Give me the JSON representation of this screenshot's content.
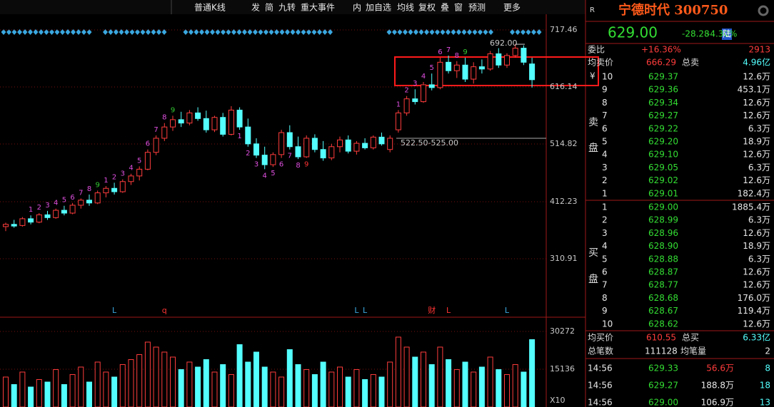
{
  "toolbar": [
    "普通K线",
    "发",
    "简",
    "九转",
    "重大事件",
    "内",
    "加自选",
    "均线",
    "复权",
    "叠",
    "窗",
    "预测",
    "更多"
  ],
  "chart": {
    "type": "candlestick",
    "ylim": [
      207.1,
      732.6
    ],
    "yticks": [
      717.46,
      616.14,
      514.82,
      412.23,
      310.91
    ],
    "candles": [
      [
        368,
        375,
        360,
        372
      ],
      [
        372,
        380,
        366,
        369
      ],
      [
        370,
        385,
        368,
        382
      ],
      [
        382,
        388,
        372,
        376
      ],
      [
        376,
        392,
        374,
        389
      ],
      [
        389,
        396,
        380,
        384
      ],
      [
        384,
        400,
        382,
        397
      ],
      [
        397,
        405,
        388,
        392
      ],
      [
        392,
        410,
        390,
        406
      ],
      [
        406,
        418,
        400,
        415
      ],
      [
        415,
        425,
        405,
        410
      ],
      [
        410,
        432,
        408,
        428
      ],
      [
        428,
        440,
        420,
        436
      ],
      [
        436,
        446,
        425,
        430
      ],
      [
        430,
        452,
        428,
        448
      ],
      [
        448,
        462,
        442,
        458
      ],
      [
        458,
        475,
        450,
        470
      ],
      [
        470,
        505,
        468,
        500
      ],
      [
        500,
        530,
        495,
        525
      ],
      [
        525,
        552,
        520,
        545
      ],
      [
        545,
        565,
        538,
        558
      ],
      [
        558,
        572,
        545,
        552
      ],
      [
        552,
        575,
        548,
        570
      ],
      [
        570,
        580,
        556,
        560
      ],
      [
        560,
        574,
        535,
        540
      ],
      [
        540,
        565,
        536,
        562
      ],
      [
        562,
        570,
        528,
        532
      ],
      [
        532,
        582,
        530,
        575
      ],
      [
        575,
        580,
        540,
        545
      ],
      [
        545,
        560,
        510,
        515
      ],
      [
        515,
        525,
        490,
        495
      ],
      [
        495,
        510,
        470,
        478
      ],
      [
        478,
        500,
        474,
        496
      ],
      [
        496,
        540,
        490,
        535
      ],
      [
        535,
        548,
        505,
        510
      ],
      [
        510,
        528,
        488,
        492
      ],
      [
        492,
        530,
        490,
        525
      ],
      [
        525,
        532,
        500,
        505
      ],
      [
        505,
        520,
        485,
        490
      ],
      [
        490,
        515,
        486,
        510
      ],
      [
        510,
        528,
        500,
        522
      ],
      [
        522,
        530,
        498,
        502
      ],
      [
        502,
        520,
        496,
        516
      ],
      [
        516,
        525,
        505,
        508
      ],
      [
        508,
        530,
        505,
        527
      ],
      [
        527,
        535,
        512,
        515
      ],
      [
        505,
        530,
        500,
        525
      ],
      [
        540,
        575,
        535,
        570
      ],
      [
        570,
        600,
        565,
        595
      ],
      [
        595,
        612,
        585,
        590
      ],
      [
        590,
        625,
        588,
        620
      ],
      [
        620,
        640,
        610,
        615
      ],
      [
        615,
        668,
        612,
        660
      ],
      [
        660,
        672,
        640,
        645
      ],
      [
        645,
        662,
        632,
        655
      ],
      [
        655,
        668,
        625,
        630
      ],
      [
        630,
        660,
        622,
        652
      ],
      [
        652,
        665,
        640,
        648
      ],
      [
        648,
        680,
        645,
        675
      ],
      [
        675,
        685,
        650,
        655
      ],
      [
        655,
        676,
        650,
        672
      ],
      [
        672,
        692,
        668,
        685
      ],
      [
        685,
        690,
        655,
        660
      ],
      [
        657,
        668,
        615,
        629
      ]
    ],
    "volumes": [
      12000,
      9000,
      14000,
      8000,
      11000,
      10000,
      15000,
      9000,
      13000,
      16000,
      10000,
      18000,
      14000,
      12000,
      17000,
      19000,
      21000,
      26000,
      24000,
      22000,
      20000,
      15000,
      18000,
      16000,
      19000,
      14000,
      17000,
      13000,
      25000,
      18000,
      22000,
      16000,
      14000,
      12000,
      23000,
      17000,
      15000,
      13000,
      18000,
      14000,
      16000,
      12000,
      15000,
      11000,
      13000,
      12000,
      18000,
      28000,
      24000,
      20000,
      22000,
      17000,
      24000,
      19000,
      15000,
      18000,
      14000,
      16000,
      20000,
      15000,
      13000,
      17000,
      14000,
      27000
    ],
    "volume_ylim": [
      0,
      33130
    ],
    "volume_ticks": [
      30272,
      15136
    ],
    "volume_unit": "X10",
    "up_color": "#ff3c3c",
    "down_color": "#54ffff",
    "td": [
      null,
      null,
      null,
      "1",
      "2",
      "3",
      "4",
      "5",
      "6",
      "7",
      "8",
      {
        "text": "9",
        "color": "#33cc33"
      },
      "1",
      "2",
      "3",
      "4",
      "5",
      "6",
      "7",
      "8",
      {
        "text": "9",
        "color": "#33cc33"
      },
      null,
      null,
      null,
      null,
      null,
      null,
      null,
      null,
      null,
      null,
      null,
      null,
      null,
      null,
      null,
      null,
      null,
      null,
      null,
      null,
      null,
      null,
      null,
      null,
      null,
      null,
      "1",
      "2",
      "3",
      "4",
      "5",
      "6",
      "7",
      "8",
      {
        "text": "9",
        "color": "#33cc33"
      },
      null,
      null,
      null,
      null,
      null,
      null,
      null,
      null
    ],
    "td_down": [
      null,
      null,
      null,
      null,
      null,
      null,
      null,
      null,
      null,
      null,
      null,
      null,
      null,
      null,
      null,
      null,
      null,
      null,
      null,
      null,
      null,
      null,
      null,
      null,
      null,
      null,
      null,
      null,
      "1",
      "2",
      "3",
      "4",
      "5",
      "6",
      "7",
      "8",
      {
        "text": "9",
        "color": "#ff3333"
      },
      null,
      null,
      null,
      null,
      null,
      null,
      null,
      null,
      null,
      null,
      null,
      null,
      null,
      null,
      null,
      null,
      null,
      null,
      null,
      null,
      null,
      null,
      null,
      null,
      null,
      null,
      null
    ],
    "events": [
      null,
      null,
      null,
      null,
      null,
      null,
      null,
      null,
      null,
      null,
      null,
      null,
      null,
      {
        "text": "L",
        "color": "#3aa8e0"
      },
      null,
      null,
      null,
      null,
      null,
      {
        "text": "q",
        "color": "#ff3333"
      },
      null,
      null,
      null,
      null,
      null,
      null,
      null,
      null,
      null,
      null,
      null,
      null,
      null,
      null,
      null,
      null,
      null,
      null,
      null,
      null,
      null,
      null,
      {
        "text": "L",
        "color": "#3aa8e0"
      },
      {
        "text": "L",
        "color": "#3aa8e0"
      },
      null,
      null,
      null,
      null,
      null,
      null,
      null,
      {
        "text": "财",
        "color": "#ff3333"
      },
      null,
      {
        "text": "L",
        "color": "#ff3333"
      },
      null,
      null,
      null,
      null,
      null,
      null,
      {
        "text": "L",
        "color": "#3aa8e0"
      },
      null,
      null,
      null
    ],
    "high_mark": {
      "value": 692,
      "label": "692.00"
    },
    "support": {
      "value": 525,
      "label": "522.50-525.00"
    }
  },
  "quote": {
    "flag": "R",
    "name": "宁德时代 300750",
    "price": "629.00",
    "change": "-28.28",
    "change_pct": "-4.30%",
    "market": "陆",
    "ratio_label": "委比",
    "ratio": "+16.36%",
    "ratio_diff": "2913",
    "avg_sell_label": "均卖价",
    "avg_sell": "666.29",
    "total_sell_label": "总卖",
    "total_sell": "4.96亿",
    "yen": "¥",
    "sell_side": [
      "卖",
      "盘"
    ],
    "sells": [
      [
        "10",
        "629.37",
        "12.6万"
      ],
      [
        "9",
        "629.36",
        "453.1万"
      ],
      [
        "8",
        "629.34",
        "12.6万"
      ],
      [
        "7",
        "629.27",
        "12.6万"
      ],
      [
        "6",
        "629.22",
        "6.3万"
      ],
      [
        "5",
        "629.20",
        "18.9万"
      ],
      [
        "4",
        "629.10",
        "12.6万"
      ],
      [
        "3",
        "629.05",
        "6.3万"
      ],
      [
        "2",
        "629.02",
        "12.6万"
      ],
      [
        "1",
        "629.01",
        "182.4万"
      ]
    ],
    "buy_side": [
      "买",
      "盘"
    ],
    "buys": [
      [
        "1",
        "629.00",
        "1885.4万"
      ],
      [
        "2",
        "628.99",
        "6.3万"
      ],
      [
        "3",
        "628.96",
        "12.6万"
      ],
      [
        "4",
        "628.90",
        "18.9万"
      ],
      [
        "5",
        "628.88",
        "6.3万"
      ],
      [
        "6",
        "628.87",
        "12.6万"
      ],
      [
        "7",
        "628.77",
        "12.6万"
      ],
      [
        "8",
        "628.68",
        "176.0万"
      ],
      [
        "9",
        "628.67",
        "119.4万"
      ],
      [
        "10",
        "628.62",
        "12.6万"
      ]
    ],
    "avg_buy_label": "均买价",
    "avg_buy": "610.55",
    "total_buy_label": "总买",
    "total_buy": "6.33亿",
    "count_label": "总笔数",
    "count": "111128",
    "avg_size_label": "均笔量",
    "avg_size": "2",
    "trades": [
      {
        "time": "14:56",
        "price": "629.33",
        "volume": "56.6万",
        "count": "8",
        "volume_color": "#ff3c3c"
      },
      {
        "time": "14:56",
        "price": "629.27",
        "volume": "188.8万",
        "count": "18",
        "volume_color": "#e8e8e8"
      },
      {
        "time": "14:56",
        "price": "629.00",
        "volume": "106.9万",
        "count": "13",
        "volume_color": "#e8e8e8"
      }
    ]
  }
}
